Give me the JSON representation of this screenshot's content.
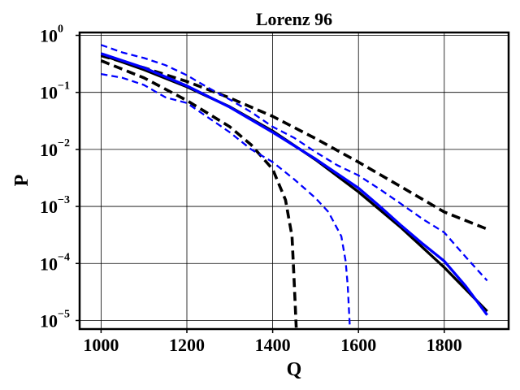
{
  "chart_data": {
    "type": "line",
    "title": "Lorenz 96",
    "xlabel": "Q",
    "ylabel": "P",
    "xlim": [
      950,
      1950
    ],
    "ylim": [
      -5.15,
      0.05
    ],
    "yscale": "log",
    "grid": true,
    "x_ticks": [
      "1000",
      "1200",
      "1400",
      "1600",
      "1800"
    ],
    "y_ticks": [
      {
        "base": "10",
        "exp": "0"
      },
      {
        "base": "10",
        "exp": "−1"
      },
      {
        "base": "10",
        "exp": "−2"
      },
      {
        "base": "10",
        "exp": "−3"
      },
      {
        "base": "10",
        "exp": "−4"
      },
      {
        "base": "10",
        "exp": "−5"
      }
    ],
    "series": [
      {
        "color": "#000000",
        "style": "solid",
        "points": [
          [
            1000,
            0.46
          ],
          [
            1100,
            0.25
          ],
          [
            1200,
            0.125
          ],
          [
            1300,
            0.056
          ],
          [
            1400,
            0.021
          ],
          [
            1500,
            0.0066
          ],
          [
            1600,
            0.0018
          ],
          [
            1700,
            0.00042
          ],
          [
            1800,
            8.5e-05
          ],
          [
            1900,
            1.45e-05
          ]
        ]
      },
      {
        "color": "#000000",
        "style": "dashed",
        "points": [
          [
            1000,
            0.44
          ],
          [
            1100,
            0.27
          ],
          [
            1200,
            0.155
          ],
          [
            1300,
            0.08
          ],
          [
            1400,
            0.038
          ],
          [
            1500,
            0.0155
          ],
          [
            1600,
            0.006
          ],
          [
            1700,
            0.0022
          ],
          [
            1800,
            0.0008
          ],
          [
            1900,
            0.0004
          ]
        ]
      },
      {
        "color": "#000000",
        "style": "dashed",
        "points": [
          [
            1000,
            0.36
          ],
          [
            1100,
            0.18
          ],
          [
            1200,
            0.072
          ],
          [
            1300,
            0.025
          ],
          [
            1350,
            0.012
          ],
          [
            1400,
            0.0045
          ],
          [
            1430,
            0.0013
          ],
          [
            1445,
            0.0003
          ],
          [
            1450,
            5e-05
          ],
          [
            1455,
            7.5e-06
          ]
        ]
      },
      {
        "color": "#0000ff",
        "style": "solid",
        "points": [
          [
            1000,
            0.48
          ],
          [
            1100,
            0.27
          ],
          [
            1200,
            0.13
          ],
          [
            1300,
            0.055
          ],
          [
            1400,
            0.02
          ],
          [
            1500,
            0.0068
          ],
          [
            1600,
            0.0021
          ],
          [
            1650,
            0.001
          ],
          [
            1700,
            0.00046
          ],
          [
            1750,
            0.00022
          ],
          [
            1800,
            0.00011
          ],
          [
            1850,
            4e-05
          ],
          [
            1900,
            1.25e-05
          ]
        ]
      },
      {
        "color": "#0000ff",
        "style": "dashed",
        "points": [
          [
            1000,
            0.68
          ],
          [
            1050,
            0.5
          ],
          [
            1100,
            0.4
          ],
          [
            1150,
            0.3
          ],
          [
            1200,
            0.2
          ],
          [
            1250,
            0.12
          ],
          [
            1300,
            0.075
          ],
          [
            1350,
            0.045
          ],
          [
            1400,
            0.025
          ],
          [
            1450,
            0.016
          ],
          [
            1500,
            0.009
          ],
          [
            1550,
            0.0053
          ],
          [
            1600,
            0.0035
          ],
          [
            1650,
            0.002
          ],
          [
            1700,
            0.0011
          ],
          [
            1750,
            0.0006
          ],
          [
            1800,
            0.00035
          ],
          [
            1850,
            0.00013
          ],
          [
            1900,
            5e-05
          ]
        ]
      },
      {
        "color": "#0000ff",
        "style": "dashed",
        "points": [
          [
            1000,
            0.21
          ],
          [
            1050,
            0.18
          ],
          [
            1100,
            0.135
          ],
          [
            1130,
            0.1
          ],
          [
            1150,
            0.082
          ],
          [
            1200,
            0.065
          ],
          [
            1250,
            0.036
          ],
          [
            1300,
            0.02
          ],
          [
            1350,
            0.01
          ],
          [
            1400,
            0.006
          ],
          [
            1450,
            0.003
          ],
          [
            1500,
            0.0014
          ],
          [
            1530,
            0.0008
          ],
          [
            1560,
            0.0003
          ],
          [
            1570,
            0.00011
          ],
          [
            1575,
            4e-05
          ],
          [
            1580,
            7.5e-06
          ]
        ]
      }
    ]
  }
}
